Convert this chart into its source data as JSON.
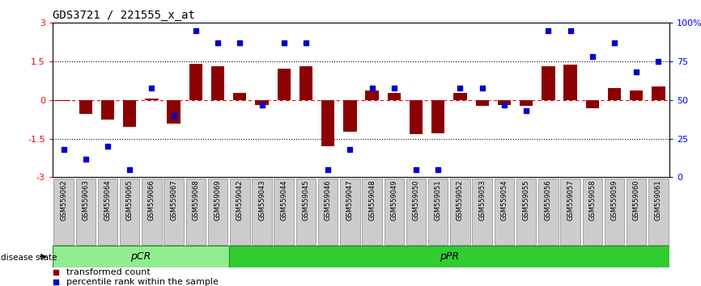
{
  "title": "GDS3721 / 221555_x_at",
  "samples": [
    "GSM559062",
    "GSM559063",
    "GSM559064",
    "GSM559065",
    "GSM559066",
    "GSM559067",
    "GSM559068",
    "GSM559069",
    "GSM559042",
    "GSM559043",
    "GSM559044",
    "GSM559045",
    "GSM559046",
    "GSM559047",
    "GSM559048",
    "GSM559049",
    "GSM559050",
    "GSM559051",
    "GSM559052",
    "GSM559053",
    "GSM559054",
    "GSM559055",
    "GSM559056",
    "GSM559057",
    "GSM559058",
    "GSM559059",
    "GSM559060",
    "GSM559061"
  ],
  "transformed_count": [
    -0.05,
    -0.55,
    -0.75,
    -1.05,
    0.05,
    -0.9,
    1.4,
    1.3,
    0.28,
    -0.18,
    1.22,
    1.32,
    -1.8,
    -1.22,
    0.38,
    0.28,
    -1.32,
    -1.28,
    0.28,
    -0.22,
    -0.18,
    -0.22,
    1.32,
    1.38,
    -0.32,
    0.48,
    0.38,
    0.52
  ],
  "percentile_rank": [
    18,
    12,
    20,
    5,
    58,
    40,
    95,
    87,
    87,
    47,
    87,
    87,
    5,
    18,
    58,
    58,
    5,
    5,
    58,
    58,
    47,
    43,
    95,
    95,
    78,
    87,
    68,
    75
  ],
  "groups": [
    {
      "label": "pCR",
      "start": 0,
      "end": 8,
      "color": "#90ee90"
    },
    {
      "label": "pPR",
      "start": 8,
      "end": 28,
      "color": "#32cd32"
    }
  ],
  "bar_color": "#8b0000",
  "scatter_color": "#0000cd",
  "ylim_left": [
    -3.0,
    3.0
  ],
  "ylim_right": [
    0,
    100
  ],
  "yticks_left": [
    -3,
    -1.5,
    0,
    1.5,
    3
  ],
  "ytick_labels_left": [
    "-3",
    "-1.5",
    "0",
    "1.5",
    "3"
  ],
  "yticks_right": [
    0,
    25,
    50,
    75,
    100
  ],
  "ytick_labels_right": [
    "0",
    "25",
    "50",
    "75",
    "100%"
  ],
  "background_color": "#ffffff",
  "disease_state_label": "disease state"
}
